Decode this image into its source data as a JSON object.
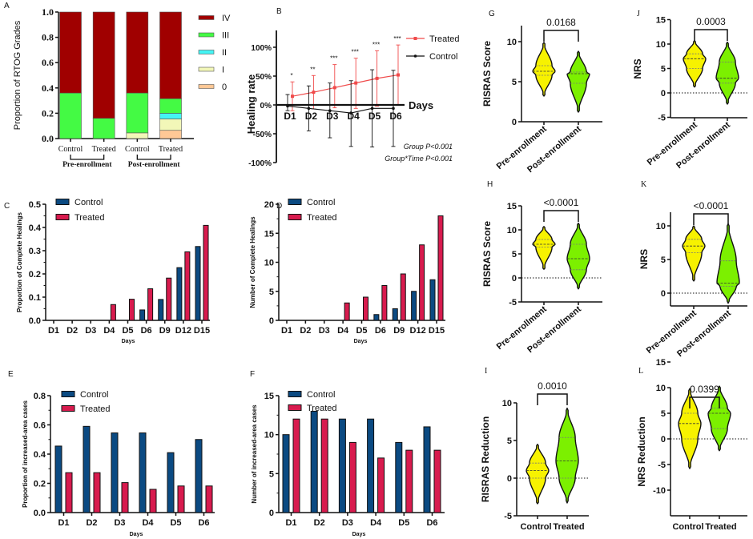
{
  "colors": {
    "control_bar": "#0b4a82",
    "treated_bar": "#d81b4e",
    "treated_line": "#f04a4a",
    "control_line": "#111111",
    "violin_pre": "#f7f200",
    "violin_post": "#7cf000"
  },
  "chart_data": [
    {
      "panel": "A",
      "type": "bar",
      "stacked": true,
      "ylabel": "Proportion of RTOG Grades",
      "ylim": [
        0,
        1
      ],
      "yticks": [
        "0.0",
        "0.2",
        "0.4",
        "0.6",
        "0.8",
        "1.0"
      ],
      "categories": [
        "Control",
        "Treated",
        "Control",
        "Treated"
      ],
      "groups": [
        "Pre-enrollment",
        "Post-enrollment"
      ],
      "series": [
        {
          "name": "0",
          "color": "#ffc896",
          "values": [
            0,
            0,
            0,
            0.065
          ]
        },
        {
          "name": "I",
          "color": "#f2f7b8",
          "values": [
            0,
            0,
            0.045,
            0.09
          ]
        },
        {
          "name": "II",
          "color": "#44f4f4",
          "values": [
            0,
            0,
            0,
            0.045
          ]
        },
        {
          "name": "III",
          "color": "#44fa44",
          "values": [
            0.36,
            0.16,
            0.315,
            0.115
          ]
        },
        {
          "name": "IV",
          "color": "#a00000",
          "values": [
            0.64,
            0.84,
            0.64,
            0.685
          ]
        }
      ]
    },
    {
      "panel": "B",
      "type": "line",
      "ylabel": "Healing rate",
      "xlabel": "Days",
      "ylim": [
        -100,
        100
      ],
      "yticks": [
        "-100%",
        "-50%",
        "0%",
        "50%",
        "100%"
      ],
      "categories": [
        "D1",
        "D2",
        "D3",
        "D4",
        "D5",
        "D6"
      ],
      "series": [
        {
          "name": "Treated",
          "color": "#f04a4a",
          "mean": [
            15,
            22,
            30,
            38,
            46,
            52
          ],
          "upper": [
            40,
            51,
            70,
            81,
            94,
            104
          ],
          "lower": [
            -10,
            -7,
            -5,
            -6,
            -2,
            0
          ]
        },
        {
          "name": "Control",
          "color": "#111111",
          "mean": [
            -2,
            -6,
            -10,
            -14,
            -6,
            -6
          ],
          "upper": [
            18,
            33,
            38,
            42,
            61,
            60
          ],
          "lower": [
            -10,
            -45,
            -57,
            -72,
            -73,
            -72
          ]
        }
      ],
      "significance": [
        "*",
        "**",
        "***",
        "***",
        "***",
        "***"
      ],
      "annotations": [
        "Group P<0.001",
        "Group*Time P<0.001"
      ]
    },
    {
      "panel": "C",
      "type": "bar",
      "ylabel": "Proportion of Complete Healings",
      "xlabel": "Days",
      "ylim": [
        0,
        0.5
      ],
      "yticks": [
        "0.0",
        "0.1",
        "0.2",
        "0.3",
        "0.4",
        "0.5"
      ],
      "categories": [
        "D1",
        "D2",
        "D3",
        "D4",
        "D5",
        "D6",
        "D9",
        "D12",
        "D15"
      ],
      "series": [
        {
          "name": "Control",
          "values": [
            0,
            0,
            0,
            0,
            0,
            0.045,
            0.09,
            0.227,
            0.318
          ]
        },
        {
          "name": "Treated",
          "values": [
            0,
            0,
            0,
            0.068,
            0.091,
            0.136,
            0.182,
            0.295,
            0.409
          ]
        }
      ]
    },
    {
      "panel": "D",
      "type": "bar",
      "ylabel": "Number of Complete Healings",
      "xlabel": "Days",
      "ylim": [
        0,
        20
      ],
      "yticks": [
        "0",
        "5",
        "10",
        "15",
        "20"
      ],
      "categories": [
        "D1",
        "D2",
        "D3",
        "D4",
        "D5",
        "D6",
        "D9",
        "D12",
        "D15"
      ],
      "series": [
        {
          "name": "Control",
          "values": [
            0,
            0,
            0,
            0,
            0,
            1,
            2,
            5,
            7
          ]
        },
        {
          "name": "Treated",
          "values": [
            0,
            0,
            0,
            3,
            4,
            6,
            8,
            13,
            18
          ]
        }
      ]
    },
    {
      "panel": "E",
      "type": "bar",
      "ylabel": "Proportion of increased-area cases",
      "xlabel": "Days",
      "ylim": [
        0,
        0.8
      ],
      "yticks": [
        "0.0",
        "0.2",
        "0.4",
        "0.6",
        "0.8"
      ],
      "categories": [
        "D1",
        "D2",
        "D3",
        "D4",
        "D5",
        "D6"
      ],
      "series": [
        {
          "name": "Control",
          "values": [
            0.455,
            0.59,
            0.545,
            0.545,
            0.41,
            0.5
          ]
        },
        {
          "name": "Treated",
          "values": [
            0.273,
            0.273,
            0.205,
            0.159,
            0.182,
            0.182
          ]
        }
      ]
    },
    {
      "panel": "F",
      "type": "bar",
      "ylabel": "Number of increased-area cases",
      "xlabel": "Days",
      "ylim": [
        0,
        15
      ],
      "yticks": [
        "0",
        "5",
        "10",
        "15"
      ],
      "categories": [
        "D1",
        "D2",
        "D3",
        "D4",
        "D5",
        "D6"
      ],
      "series": [
        {
          "name": "Control",
          "values": [
            10,
            13,
            12,
            12,
            9,
            11
          ]
        },
        {
          "name": "Treated",
          "values": [
            12,
            12,
            9,
            7,
            8,
            8
          ]
        }
      ]
    },
    {
      "panel": "G",
      "type": "violin",
      "ylabel": "RISRAS Score",
      "yticks": [
        "0",
        "5",
        "10"
      ],
      "zero_line": false,
      "p_value": "0.0168",
      "categories": [
        "Pre-enrollment",
        "Post-enrollment"
      ],
      "violins": [
        {
          "min": 3.2,
          "q1": 5.8,
          "median": 6.3,
          "q3": 7.0,
          "max": 9.9
        },
        {
          "min": 1.2,
          "q1": 4.8,
          "median": 6.0,
          "q3": 6.2,
          "max": 8.8
        }
      ]
    },
    {
      "panel": "J",
      "type": "violin",
      "ylabel": "NRS",
      "yticks": [
        "-5",
        "0",
        "5",
        "10",
        "15"
      ],
      "zero_line": true,
      "p_value": "0.0003",
      "categories": [
        "Pre-enrollment",
        "Post-enrollment"
      ],
      "violins": [
        {
          "min": 1.2,
          "q1": 5.0,
          "median": 7.0,
          "q3": 8.0,
          "max": 10.7
        },
        {
          "min": -2.3,
          "q1": 2.0,
          "median": 3.0,
          "q3": 6.3,
          "max": 10.4
        }
      ]
    },
    {
      "panel": "H",
      "type": "violin",
      "ylabel": "RISRAS Score",
      "yticks": [
        "-5",
        "0",
        "5",
        "10",
        "15"
      ],
      "zero_line": true,
      "p_value": "<0.0001",
      "categories": [
        "Pre-enrollment",
        "Post-enrollment"
      ],
      "violins": [
        {
          "min": 1.8,
          "q1": 6.4,
          "median": 7.0,
          "q3": 8.0,
          "max": 10.7
        },
        {
          "min": -2.3,
          "q1": 1.7,
          "median": 4.0,
          "q3": 7.0,
          "max": 11.4
        }
      ]
    },
    {
      "panel": "K",
      "type": "violin",
      "ylabel": "NRS",
      "yticks": [
        "0",
        "5",
        "10"
      ],
      "zero_line": true,
      "p_value": "<0.0001",
      "categories": [
        "Pre-enrollment",
        "Post-enrollment"
      ],
      "violins": [
        {
          "min": 1.8,
          "q1": 6.0,
          "median": 7.0,
          "q3": 8.0,
          "max": 10.0
        },
        {
          "min": -1.5,
          "q1": 1.0,
          "median": 1.5,
          "q3": 4.8,
          "max": 10.3
        }
      ]
    },
    {
      "panel": "I",
      "type": "violin",
      "ylabel": "RISRAS Reduction",
      "yticks": [
        "-5",
        "0",
        "5",
        "10"
      ],
      "zero_line": true,
      "p_value": "0.0010",
      "categories": [
        "Control",
        "Treated"
      ],
      "violins": [
        {
          "min": -3.4,
          "q1": 0.0,
          "median": 1.0,
          "q3": 2.0,
          "max": 4.5
        },
        {
          "min": -3.3,
          "q1": 0.0,
          "median": 2.3,
          "q3": 5.4,
          "max": 9.3
        }
      ]
    },
    {
      "panel": "L",
      "type": "violin",
      "ylabel": "NRS Reduction",
      "yticks": [
        "-10",
        "-5",
        "0",
        "5",
        "10",
        "15"
      ],
      "zero_line": true,
      "p_value": "0.0399",
      "categories": [
        "Control",
        "Treated"
      ],
      "violins": [
        {
          "min": -5.8,
          "q1": 0.0,
          "median": 3.0,
          "q3": 5.0,
          "max": 9.8
        },
        {
          "min": -2.3,
          "q1": 2.0,
          "median": 5.0,
          "q3": 6.0,
          "max": 10.3
        }
      ]
    }
  ]
}
